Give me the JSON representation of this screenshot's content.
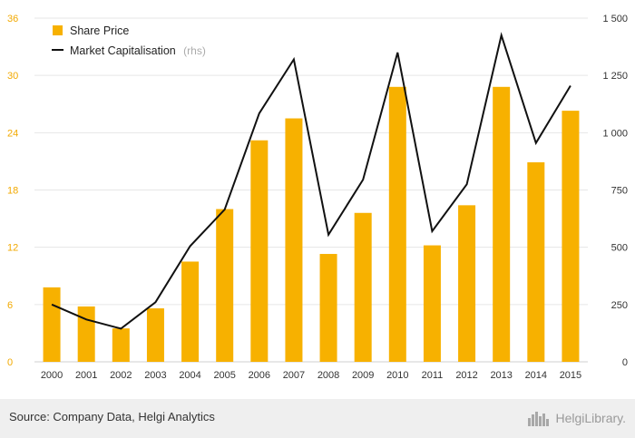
{
  "chart_data": {
    "type": "bar",
    "categories": [
      "2000",
      "2001",
      "2002",
      "2003",
      "2004",
      "2005",
      "2006",
      "2007",
      "2008",
      "2009",
      "2010",
      "2011",
      "2012",
      "2013",
      "2014",
      "2015"
    ],
    "series": [
      {
        "name": "Share Price",
        "type": "bar",
        "axis": "left",
        "color": "#f7b100",
        "values": [
          7.8,
          5.8,
          3.5,
          5.6,
          10.5,
          16.0,
          23.2,
          25.5,
          11.3,
          15.6,
          28.8,
          12.2,
          16.4,
          28.8,
          20.9,
          26.3
        ]
      },
      {
        "name": "Market Capitalisation",
        "name_suffix": "(rhs)",
        "type": "line",
        "axis": "right",
        "color": "#111111",
        "values": [
          250,
          185,
          145,
          260,
          505,
          665,
          1085,
          1320,
          555,
          795,
          1350,
          570,
          775,
          1425,
          955,
          1205
        ]
      }
    ],
    "yaxis_left": {
      "min": 0,
      "max": 36,
      "ticks": [
        "0",
        "6",
        "12",
        "18",
        "24",
        "30",
        "36"
      ]
    },
    "yaxis_right": {
      "min": 0,
      "max": 1500,
      "ticks": [
        "0",
        "250",
        "500",
        "750",
        "1 000",
        "1 250",
        "1 500"
      ]
    },
    "grid": true,
    "legend_position": "top-left"
  },
  "footer": {
    "source": "Source: Company Data, Helgi Analytics",
    "logo_text": "HelgiLibrary."
  }
}
